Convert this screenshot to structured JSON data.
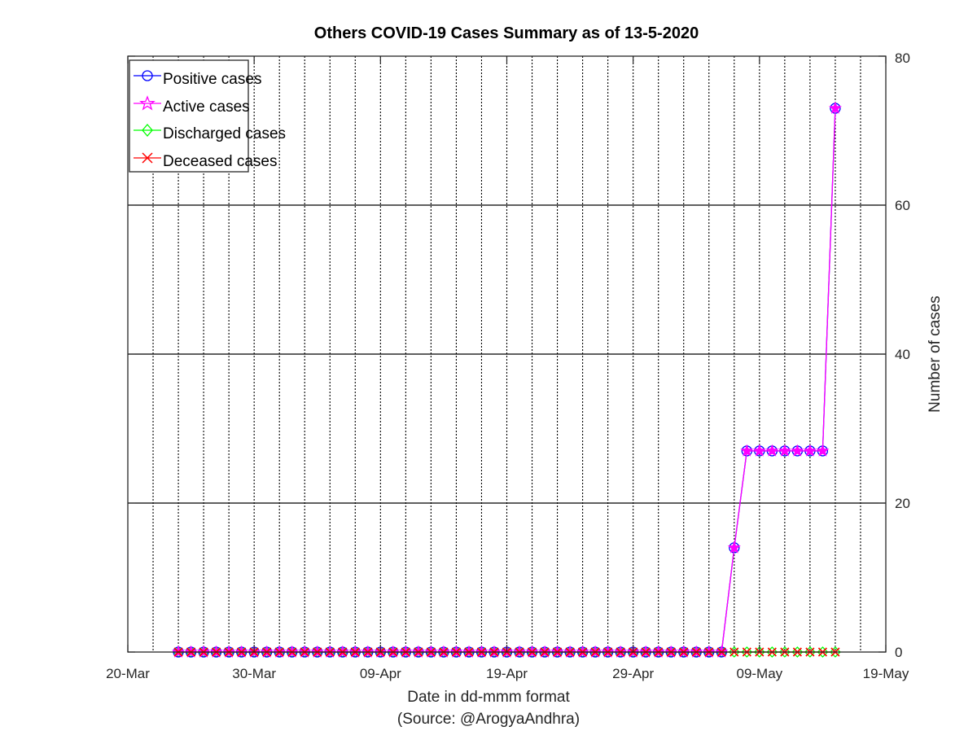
{
  "chart_data": {
    "type": "line",
    "title": "Others COVID-19 Cases Summary as of 13-5-2020",
    "xlabel": "Date in dd-mmm format",
    "source": "(Source: @ArogyaAndhra)",
    "ylabel": "Number of cases",
    "xlim": [
      0,
      60
    ],
    "ylim": [
      0,
      80
    ],
    "x_ticks": [
      {
        "day": 0,
        "label": "20-Mar"
      },
      {
        "day": 10,
        "label": "30-Mar"
      },
      {
        "day": 20,
        "label": "09-Apr"
      },
      {
        "day": 30,
        "label": "19-Apr"
      },
      {
        "day": 40,
        "label": "29-Apr"
      },
      {
        "day": 50,
        "label": "09-May"
      },
      {
        "day": 60,
        "label": "19-May"
      }
    ],
    "y_ticks": [
      0,
      20,
      40,
      60,
      80
    ],
    "x_grid_days": [
      2,
      4,
      6,
      8,
      10,
      12,
      14,
      16,
      18,
      20,
      22,
      24,
      26,
      28,
      30,
      32,
      34,
      36,
      38,
      40,
      42,
      44,
      46,
      48,
      50,
      52,
      54,
      56,
      58
    ],
    "y_grid": [
      20,
      40,
      60
    ],
    "legend_position": "top-left",
    "start_day": 4,
    "series": [
      {
        "name": "Positive cases",
        "color": "#0000ff",
        "marker": "circle",
        "values": [
          0,
          0,
          0,
          0,
          0,
          0,
          0,
          0,
          0,
          0,
          0,
          0,
          0,
          0,
          0,
          0,
          0,
          0,
          0,
          0,
          0,
          0,
          0,
          0,
          0,
          0,
          0,
          0,
          0,
          0,
          0,
          0,
          0,
          0,
          0,
          0,
          0,
          0,
          0,
          0,
          0,
          0,
          0,
          0,
          14,
          27,
          27,
          27,
          27,
          27,
          27,
          27,
          73
        ]
      },
      {
        "name": "Active cases",
        "color": "#ff00ff",
        "marker": "star",
        "values": [
          0,
          0,
          0,
          0,
          0,
          0,
          0,
          0,
          0,
          0,
          0,
          0,
          0,
          0,
          0,
          0,
          0,
          0,
          0,
          0,
          0,
          0,
          0,
          0,
          0,
          0,
          0,
          0,
          0,
          0,
          0,
          0,
          0,
          0,
          0,
          0,
          0,
          0,
          0,
          0,
          0,
          0,
          0,
          0,
          14,
          27,
          27,
          27,
          27,
          27,
          27,
          27,
          73
        ]
      },
      {
        "name": "Discharged cases",
        "color": "#00ff00",
        "marker": "diamond",
        "values": [
          0,
          0,
          0,
          0,
          0,
          0,
          0,
          0,
          0,
          0,
          0,
          0,
          0,
          0,
          0,
          0,
          0,
          0,
          0,
          0,
          0,
          0,
          0,
          0,
          0,
          0,
          0,
          0,
          0,
          0,
          0,
          0,
          0,
          0,
          0,
          0,
          0,
          0,
          0,
          0,
          0,
          0,
          0,
          0,
          0,
          0,
          0,
          0,
          0,
          0,
          0,
          0,
          0
        ]
      },
      {
        "name": "Deceased cases",
        "color": "#ff0000",
        "marker": "x",
        "values": [
          0,
          0,
          0,
          0,
          0,
          0,
          0,
          0,
          0,
          0,
          0,
          0,
          0,
          0,
          0,
          0,
          0,
          0,
          0,
          0,
          0,
          0,
          0,
          0,
          0,
          0,
          0,
          0,
          0,
          0,
          0,
          0,
          0,
          0,
          0,
          0,
          0,
          0,
          0,
          0,
          0,
          0,
          0,
          0,
          0,
          0,
          0,
          0,
          0,
          0,
          0,
          0,
          0
        ]
      }
    ]
  }
}
